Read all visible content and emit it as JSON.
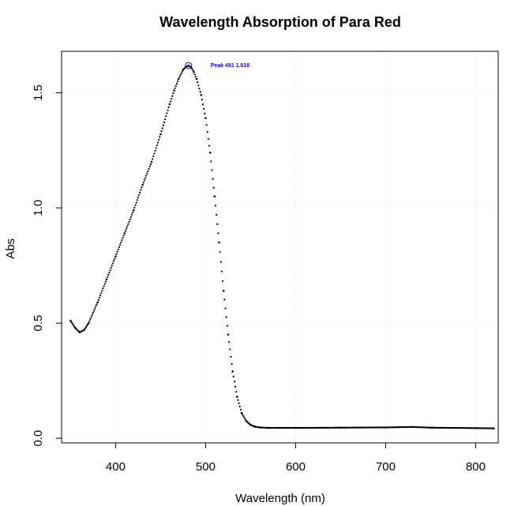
{
  "chart_data": {
    "type": "scatter",
    "title": "Wavelength Absorption of Para Red",
    "xlabel": "Wavelength (nm)",
    "ylabel": "Abs",
    "xlim": [
      340,
      825
    ],
    "ylim": [
      -0.02,
      1.68
    ],
    "xticks": [
      400,
      500,
      600,
      700,
      800
    ],
    "yticks": [
      0.0,
      0.5,
      1.0,
      1.5
    ],
    "xtick_labels": [
      "400",
      "500",
      "600",
      "700",
      "800"
    ],
    "ytick_labels": [
      "0.0",
      "0.5",
      "1.0",
      "1.5"
    ],
    "grid": true,
    "grid_style": "dotted",
    "point_color": "#000000",
    "annotation_color": "#1a00cc",
    "peak": {
      "x": 481,
      "y": 1.618,
      "label": "Peak 481 1.618"
    },
    "series": [
      {
        "x": [
          350,
          355,
          360,
          365,
          370,
          380,
          390,
          400,
          410,
          420,
          430,
          440,
          450,
          460,
          465,
          470,
          475,
          478,
          481,
          484,
          487,
          490,
          495,
          500,
          505,
          510,
          515,
          520,
          525,
          530,
          535,
          540,
          545,
          550,
          555,
          560,
          570,
          580,
          600,
          650,
          700,
          730,
          750,
          800,
          820
        ],
        "y": [
          0.51,
          0.48,
          0.46,
          0.47,
          0.5,
          0.59,
          0.69,
          0.79,
          0.89,
          0.99,
          1.1,
          1.2,
          1.32,
          1.45,
          1.51,
          1.56,
          1.6,
          1.612,
          1.618,
          1.61,
          1.59,
          1.56,
          1.49,
          1.39,
          1.24,
          1.05,
          0.85,
          0.64,
          0.45,
          0.29,
          0.18,
          0.11,
          0.075,
          0.058,
          0.05,
          0.047,
          0.045,
          0.045,
          0.045,
          0.046,
          0.047,
          0.049,
          0.046,
          0.044,
          0.043
        ]
      }
    ]
  }
}
